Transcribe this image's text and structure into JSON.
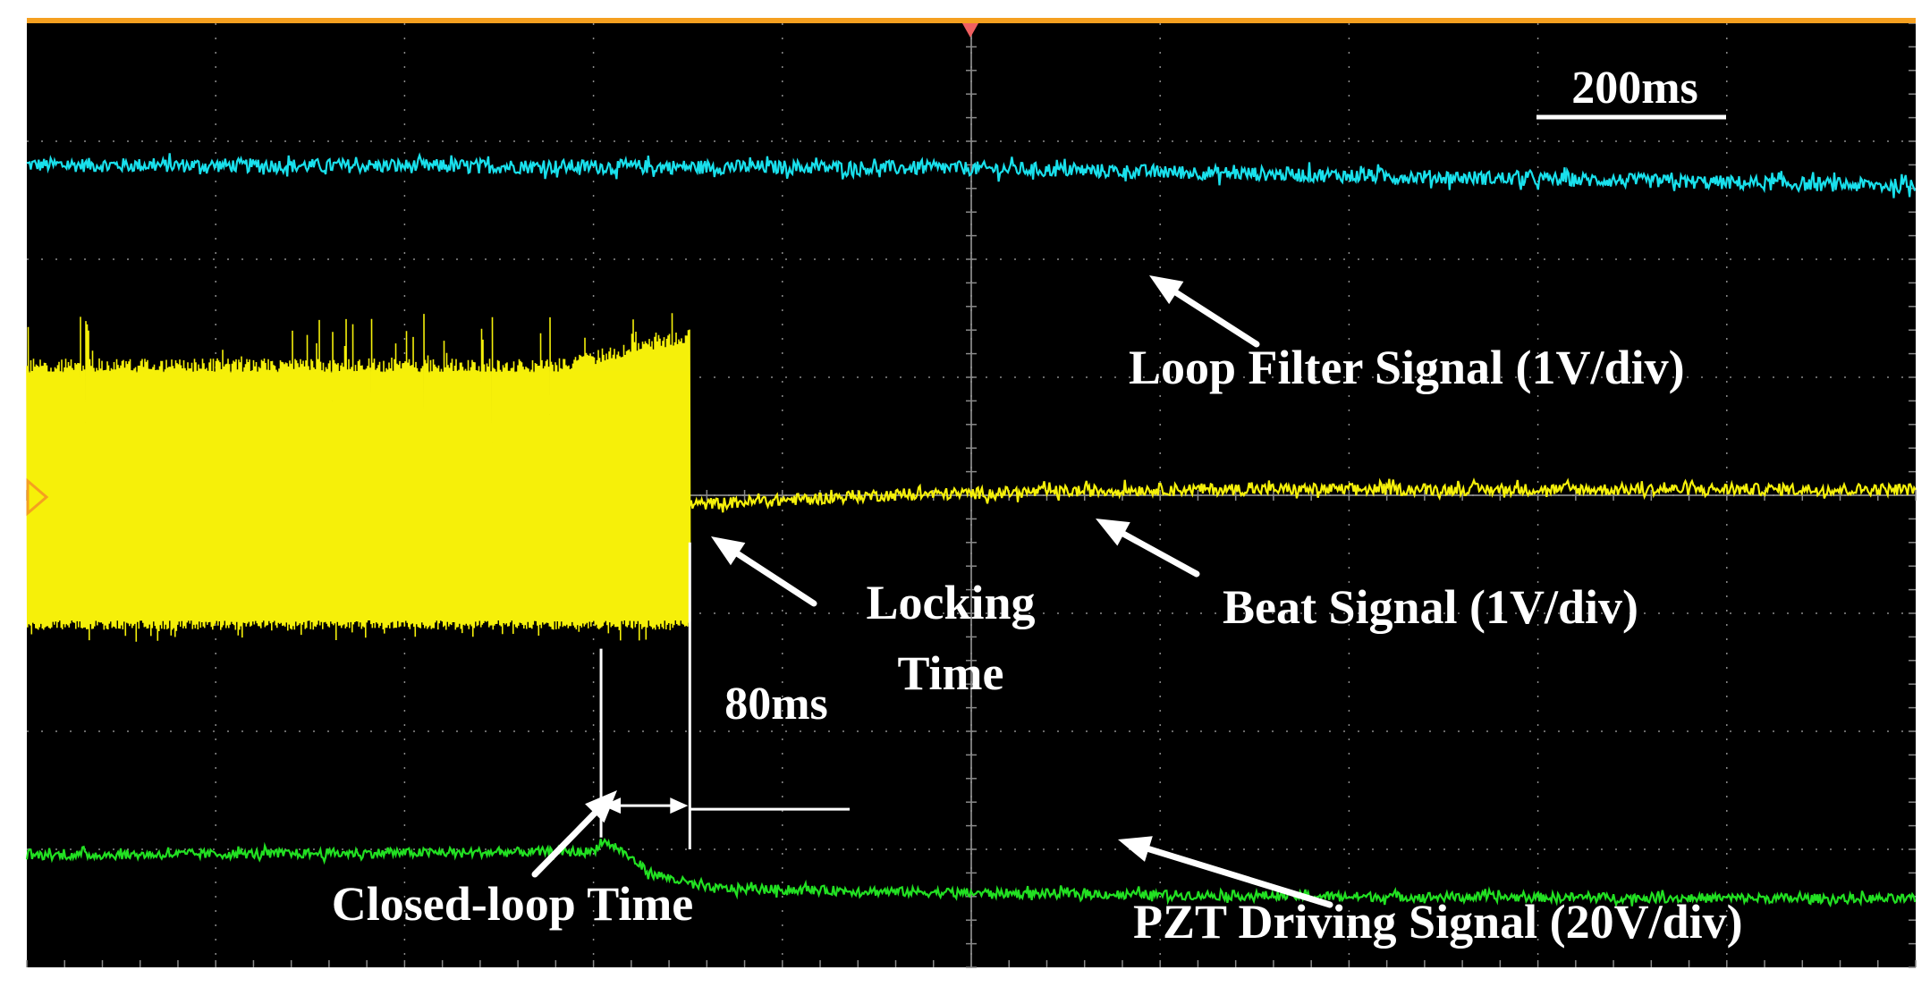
{
  "chart_data": {
    "type": "line",
    "title": "",
    "xlabel": "",
    "ylabel": "",
    "x_unit": "ms",
    "xlim": [
      0,
      1000
    ],
    "ylim": [
      -4,
      4
    ],
    "grid": true,
    "grid_divisions": {
      "x": 10,
      "y": 8
    },
    "background": "#000000",
    "colors": {
      "loop_filter": "#19e0ec",
      "beat": "#f5f00a",
      "pzt": "#22e022",
      "frame": "#f5a020",
      "grid": "#8a8a8a",
      "annotation": "#ffffff"
    },
    "series": [
      {
        "name": "Loop Filter Signal (1V/div)",
        "key": "loop_filter",
        "x": [
          0,
          200,
          400,
          500,
          600,
          800,
          1000
        ],
        "y": [
          2.8,
          2.79,
          2.78,
          2.77,
          2.74,
          2.68,
          2.62
        ],
        "noise_div": 0.06
      },
      {
        "name": "Beat Signal (1V/div)",
        "key": "beat",
        "x": [
          0,
          350,
          351,
          450,
          600,
          800,
          1000
        ],
        "y": [
          0,
          0,
          -0.08,
          0.0,
          0.05,
          0.05,
          0.05
        ],
        "oscillation": {
          "x_start": 0,
          "x_end": 351,
          "upper_div": 1.1,
          "lower_div": -1.1,
          "peak_div": 1.55
        },
        "noise_div": 0.05
      },
      {
        "name": "PZT Driving Signal (20V/div)",
        "key": "pzt",
        "x": [
          0,
          300,
          304,
          312,
          330,
          360,
          500,
          700,
          1000
        ],
        "y": [
          -3.05,
          -3.02,
          -2.93,
          -2.98,
          -3.2,
          -3.33,
          -3.37,
          -3.4,
          -3.42
        ],
        "noise_div": 0.04
      }
    ],
    "annotations": {
      "scale_label": "200ms",
      "locking_line1": "Locking",
      "locking_line2": "Time",
      "interval_label": "80ms",
      "loop_filter_label": "Loop Filter Signal (1V/div)",
      "beat_label": "Beat Signal (1V/div)",
      "closed_loop_label": "Closed-loop Time",
      "pzt_label": "PZT Driving Signal (20V/div)"
    },
    "markers": {
      "closed_loop_time": 304,
      "locking_time": 351
    }
  }
}
